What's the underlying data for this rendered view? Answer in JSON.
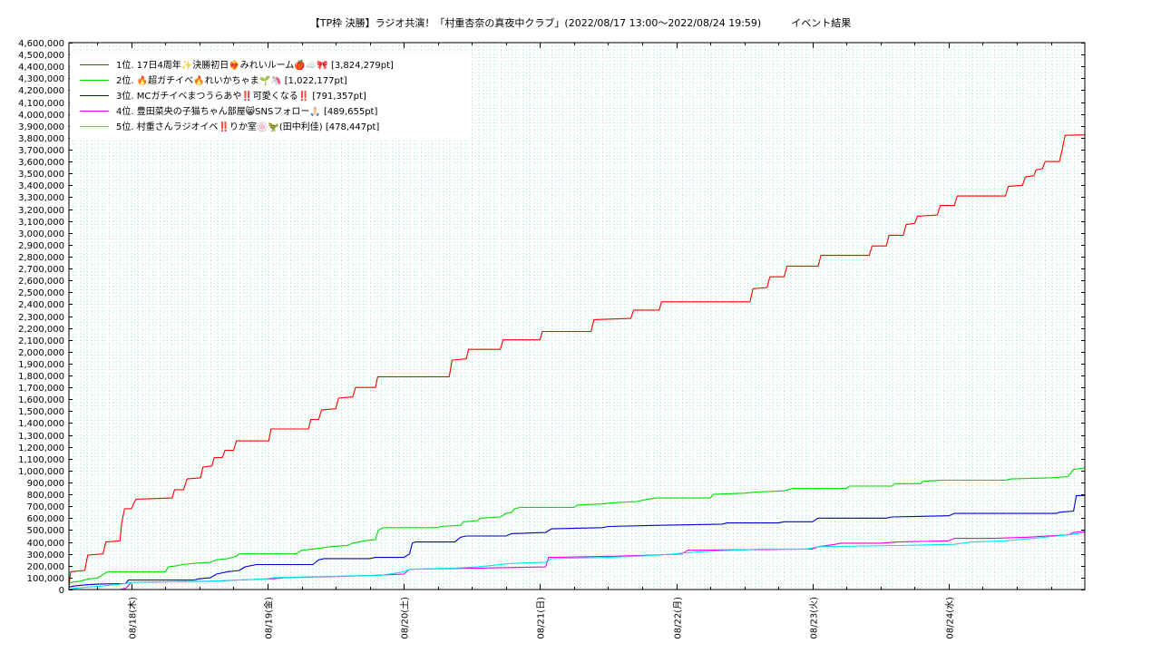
{
  "chart_data": {
    "type": "line",
    "title": "【TP枠 決勝】ラジオ共演！「村重杏奈の真夜中クラブ」(2022/08/17 13:00～2022/08/24 19:59)　　　イベント結果",
    "xlabel": "",
    "ylabel": "",
    "ylim": [
      0,
      4600000
    ],
    "y_tick_step": 100000,
    "xlim_hours": [
      0,
      178.98
    ],
    "x_start_label": "2022/08/17 13:00",
    "x_ticks": [
      {
        "label": "08/18(木)",
        "hour": 11
      },
      {
        "label": "08/19(金)",
        "hour": 35
      },
      {
        "label": "08/20(土)",
        "hour": 59
      },
      {
        "label": "08/21(日)",
        "hour": 83
      },
      {
        "label": "08/22(月)",
        "hour": 107
      },
      {
        "label": "08/23(火)",
        "hour": 131
      },
      {
        "label": "08/24(水)",
        "hour": 155
      }
    ],
    "grid": true,
    "legend_position": "top-left",
    "series": [
      {
        "name": "1位. 17日4周年✨決勝初日❤️‍🔥みれいルーム🍎☁️🎀 [3,824,279pt]",
        "color": "#ff0000",
        "points": [
          [
            0,
            20000
          ],
          [
            0.3,
            150000
          ],
          [
            2.8,
            160000
          ],
          [
            3.3,
            290000
          ],
          [
            6,
            300000
          ],
          [
            6.5,
            400000
          ],
          [
            9,
            410000
          ],
          [
            9.3,
            560000
          ],
          [
            9.8,
            680000
          ],
          [
            11,
            680000
          ],
          [
            11.8,
            760000
          ],
          [
            18.2,
            770000
          ],
          [
            18.6,
            840000
          ],
          [
            20.2,
            840000
          ],
          [
            20.8,
            930000
          ],
          [
            23.2,
            940000
          ],
          [
            23.6,
            1030000
          ],
          [
            25.2,
            1040000
          ],
          [
            25.6,
            1110000
          ],
          [
            27,
            1110000
          ],
          [
            27.5,
            1170000
          ],
          [
            29,
            1170000
          ],
          [
            29.5,
            1250000
          ],
          [
            35.2,
            1250000
          ],
          [
            35.6,
            1350000
          ],
          [
            42.2,
            1350000
          ],
          [
            42.6,
            1430000
          ],
          [
            44,
            1430000
          ],
          [
            44.5,
            1510000
          ],
          [
            47,
            1520000
          ],
          [
            47.5,
            1610000
          ],
          [
            50,
            1620000
          ],
          [
            50.5,
            1700000
          ],
          [
            54,
            1700000
          ],
          [
            54.4,
            1790000
          ],
          [
            67,
            1790000
          ],
          [
            67.5,
            1930000
          ],
          [
            70,
            1940000
          ],
          [
            70.4,
            2020000
          ],
          [
            76,
            2020000
          ],
          [
            76.5,
            2100000
          ],
          [
            83,
            2100000
          ],
          [
            83.4,
            2170000
          ],
          [
            92,
            2170000
          ],
          [
            92.5,
            2270000
          ],
          [
            99,
            2280000
          ],
          [
            99.5,
            2350000
          ],
          [
            104,
            2350000
          ],
          [
            104.4,
            2420000
          ],
          [
            120,
            2420000
          ],
          [
            120.5,
            2530000
          ],
          [
            123,
            2540000
          ],
          [
            123.5,
            2630000
          ],
          [
            126,
            2630000
          ],
          [
            126.5,
            2720000
          ],
          [
            132,
            2720000
          ],
          [
            132.5,
            2810000
          ],
          [
            141,
            2810000
          ],
          [
            141.5,
            2890000
          ],
          [
            144,
            2890000
          ],
          [
            144.5,
            2980000
          ],
          [
            147,
            2980000
          ],
          [
            147.5,
            3070000
          ],
          [
            149,
            3080000
          ],
          [
            149.5,
            3140000
          ],
          [
            153,
            3150000
          ],
          [
            153.5,
            3230000
          ],
          [
            156,
            3230000
          ],
          [
            156.5,
            3310000
          ],
          [
            165,
            3310000
          ],
          [
            165.5,
            3390000
          ],
          [
            168,
            3400000
          ],
          [
            168.5,
            3470000
          ],
          [
            170,
            3480000
          ],
          [
            170.4,
            3530000
          ],
          [
            171.5,
            3540000
          ],
          [
            172,
            3600000
          ],
          [
            174.5,
            3600000
          ],
          [
            175,
            3700000
          ],
          [
            175.5,
            3820000
          ],
          [
            179,
            3824279
          ]
        ]
      },
      {
        "name": "2位. 🔥超ガチイベ🔥れいかちゃま🌱🦄 [1,022,177pt]",
        "color": "#00dd00",
        "points": [
          [
            0,
            50000
          ],
          [
            0.5,
            60000
          ],
          [
            2,
            70000
          ],
          [
            3.5,
            90000
          ],
          [
            5,
            95000
          ],
          [
            6.5,
            140000
          ],
          [
            7,
            150000
          ],
          [
            17,
            150000
          ],
          [
            17.5,
            190000
          ],
          [
            19,
            200000
          ],
          [
            20,
            210000
          ],
          [
            22,
            220000
          ],
          [
            25,
            230000
          ],
          [
            26,
            250000
          ],
          [
            28,
            260000
          ],
          [
            29.5,
            280000
          ],
          [
            30,
            300000
          ],
          [
            40,
            300000
          ],
          [
            41,
            330000
          ],
          [
            43,
            340000
          ],
          [
            46,
            360000
          ],
          [
            49,
            370000
          ],
          [
            50,
            390000
          ],
          [
            52,
            410000
          ],
          [
            54,
            420000
          ],
          [
            54.5,
            500000
          ],
          [
            55.5,
            520000
          ],
          [
            65,
            520000
          ],
          [
            65.5,
            530000
          ],
          [
            69,
            540000
          ],
          [
            69.5,
            570000
          ],
          [
            72,
            580000
          ],
          [
            72.5,
            600000
          ],
          [
            76,
            610000
          ],
          [
            77,
            640000
          ],
          [
            78,
            650000
          ],
          [
            78.5,
            680000
          ],
          [
            79.5,
            690000
          ],
          [
            89,
            690000
          ],
          [
            89.5,
            710000
          ],
          [
            94,
            720000
          ],
          [
            96,
            730000
          ],
          [
            100,
            740000
          ],
          [
            102,
            760000
          ],
          [
            103.5,
            770000
          ],
          [
            113,
            770000
          ],
          [
            113.5,
            800000
          ],
          [
            119,
            810000
          ],
          [
            121,
            820000
          ],
          [
            126,
            830000
          ],
          [
            127.5,
            850000
          ],
          [
            137,
            850000
          ],
          [
            137.5,
            870000
          ],
          [
            145,
            870000
          ],
          [
            145.5,
            890000
          ],
          [
            150,
            890000
          ],
          [
            150.5,
            910000
          ],
          [
            154,
            920000
          ],
          [
            165,
            920000
          ],
          [
            166,
            930000
          ],
          [
            173,
            940000
          ],
          [
            176,
            950000
          ],
          [
            176.5,
            980000
          ],
          [
            177,
            1010000
          ],
          [
            179,
            1022177
          ]
        ]
      },
      {
        "name": "3位. MCガチイベまつうらあや‼️可愛くなる‼️ [791,357pt]",
        "color": "#0000cc",
        "points": [
          [
            0,
            20000
          ],
          [
            1,
            30000
          ],
          [
            3,
            40000
          ],
          [
            5,
            45000
          ],
          [
            10,
            50000
          ],
          [
            10.5,
            80000
          ],
          [
            22,
            80000
          ],
          [
            23,
            90000
          ],
          [
            25,
            100000
          ],
          [
            26,
            130000
          ],
          [
            28,
            150000
          ],
          [
            30,
            160000
          ],
          [
            31,
            190000
          ],
          [
            33,
            210000
          ],
          [
            43,
            210000
          ],
          [
            44,
            250000
          ],
          [
            45,
            260000
          ],
          [
            53,
            260000
          ],
          [
            54,
            270000
          ],
          [
            59,
            270000
          ],
          [
            60,
            300000
          ],
          [
            60.5,
            390000
          ],
          [
            61,
            400000
          ],
          [
            68,
            400000
          ],
          [
            69,
            440000
          ],
          [
            70,
            450000
          ],
          [
            77,
            450000
          ],
          [
            78,
            470000
          ],
          [
            84,
            480000
          ],
          [
            85,
            510000
          ],
          [
            94,
            520000
          ],
          [
            95,
            530000
          ],
          [
            104,
            540000
          ],
          [
            115,
            550000
          ],
          [
            116,
            560000
          ],
          [
            125,
            560000
          ],
          [
            126,
            570000
          ],
          [
            131,
            570000
          ],
          [
            132,
            600000
          ],
          [
            144,
            600000
          ],
          [
            145,
            610000
          ],
          [
            155,
            620000
          ],
          [
            156,
            640000
          ],
          [
            174,
            640000
          ],
          [
            174.5,
            650000
          ],
          [
            177,
            660000
          ],
          [
            177.5,
            790000
          ],
          [
            179,
            791357
          ]
        ]
      },
      {
        "name": "4位. 豊田菜央の子猫ちゃん部屋😸SNSフォロー🙏🏻 [489,655pt]",
        "color": "#ee00ee",
        "points": [
          [
            0,
            0
          ],
          [
            9,
            0
          ],
          [
            10,
            10000
          ],
          [
            11,
            60000
          ],
          [
            26,
            70000
          ],
          [
            30,
            80000
          ],
          [
            36,
            90000
          ],
          [
            38,
            100000
          ],
          [
            48,
            110000
          ],
          [
            54,
            120000
          ],
          [
            59,
            130000
          ],
          [
            60,
            170000
          ],
          [
            72,
            180000
          ],
          [
            84,
            190000
          ],
          [
            84.5,
            270000
          ],
          [
            96,
            280000
          ],
          [
            103,
            290000
          ],
          [
            108,
            300000
          ],
          [
            109,
            330000
          ],
          [
            131,
            340000
          ],
          [
            132,
            360000
          ],
          [
            135,
            380000
          ],
          [
            136,
            390000
          ],
          [
            143,
            390000
          ],
          [
            146,
            400000
          ],
          [
            155,
            410000
          ],
          [
            156,
            430000
          ],
          [
            163,
            430000
          ],
          [
            169,
            440000
          ],
          [
            176,
            460000
          ],
          [
            177,
            480000
          ],
          [
            179,
            489655
          ]
        ]
      },
      {
        "name": "5位. 村重さんラジオイベ‼️りか室🍥🦖(田中利佳) [478,447pt]",
        "color": "#00e5ee",
        "points": [
          [
            0,
            0
          ],
          [
            1,
            10000
          ],
          [
            3,
            20000
          ],
          [
            6,
            30000
          ],
          [
            10,
            50000
          ],
          [
            11,
            60000
          ],
          [
            25,
            70000
          ],
          [
            30,
            80000
          ],
          [
            35,
            90000
          ],
          [
            36,
            100000
          ],
          [
            46,
            110000
          ],
          [
            55,
            120000
          ],
          [
            58,
            140000
          ],
          [
            59,
            150000
          ],
          [
            60,
            170000
          ],
          [
            68,
            180000
          ],
          [
            72,
            190000
          ],
          [
            74,
            200000
          ],
          [
            78,
            220000
          ],
          [
            84,
            230000
          ],
          [
            85,
            260000
          ],
          [
            95,
            270000
          ],
          [
            100,
            280000
          ],
          [
            104,
            290000
          ],
          [
            109,
            310000
          ],
          [
            112,
            320000
          ],
          [
            117,
            330000
          ],
          [
            122,
            340000
          ],
          [
            130,
            340000
          ],
          [
            132,
            360000
          ],
          [
            146,
            370000
          ],
          [
            156,
            380000
          ],
          [
            159,
            400000
          ],
          [
            165,
            410000
          ],
          [
            170,
            430000
          ],
          [
            174,
            450000
          ],
          [
            176,
            460000
          ],
          [
            179,
            478447
          ]
        ]
      }
    ]
  }
}
